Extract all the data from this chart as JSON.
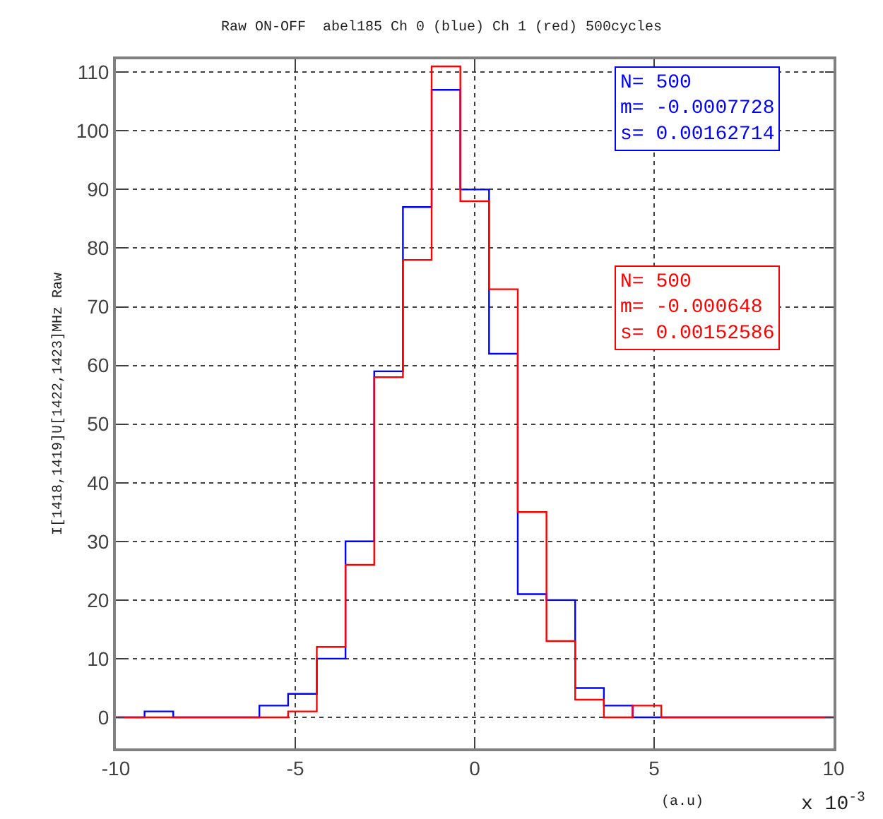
{
  "chart_data": {
    "type": "histogram",
    "title": "Raw ON-OFF  abel185 Ch 0 (blue) Ch 1 (red) 500cycles",
    "xlabel": "(a.u)",
    "ylabel": "I[1418,1419]U[1422,1423]MHz Raw",
    "bins": [
      -10,
      -9.2,
      -8.4,
      -7.6,
      -6.8,
      -6.0,
      -5.2,
      -4.4,
      -3.6,
      -2.8,
      -2.0,
      -1.2,
      -0.4,
      0.4,
      1.2,
      2.0,
      2.8,
      3.6,
      4.4,
      5.2,
      6.0,
      6.8,
      7.6,
      8.4,
      9.2,
      10
    ],
    "series": [
      {
        "color": "#0000ff",
        "values": [
          0,
          1,
          0,
          0,
          0,
          2,
          4,
          10,
          30,
          59,
          87,
          107,
          90,
          62,
          21,
          20,
          5,
          2,
          0,
          0,
          0,
          0,
          0,
          0,
          0
        ]
      },
      {
        "color": "#ff0000",
        "values": [
          0,
          0,
          0,
          0,
          0,
          0,
          1,
          12,
          26,
          58,
          78,
          111,
          88,
          73,
          35,
          13,
          3,
          0,
          2,
          0,
          0,
          0,
          0,
          0,
          0
        ]
      }
    ],
    "annotations": [
      "N= 500\nm= -0.0007728\ns= 0.00162714",
      "N= 500\nm= -0.000648\ns= 0.00152586",
      "x 10$^{-3}$"
    ],
    "xlim": [
      -10,
      10
    ],
    "xticks": [
      -10,
      -5,
      0,
      5,
      10
    ],
    "ylim": [
      -5.3,
      112.2
    ],
    "yticks": [
      0,
      10,
      20,
      30,
      40,
      50,
      60,
      70,
      80,
      90,
      100,
      110
    ],
    "grid": true
  }
}
